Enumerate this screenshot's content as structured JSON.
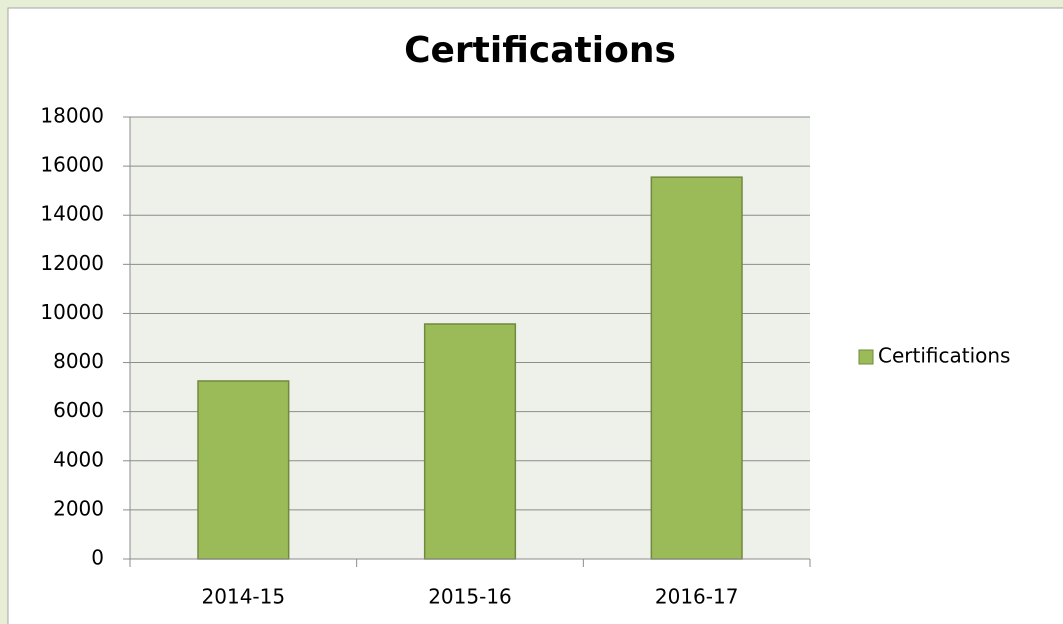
{
  "chart_data": {
    "type": "bar",
    "title": "Certifications",
    "categories": [
      "2014-15",
      "2015-16",
      "2016-17"
    ],
    "series": [
      {
        "name": "Certifications",
        "color": "#9bbb59",
        "values": [
          7250,
          9570,
          15550
        ]
      }
    ],
    "ylim": [
      0,
      18000
    ],
    "yticks": [
      0,
      2000,
      4000,
      6000,
      8000,
      10000,
      12000,
      14000,
      16000,
      18000
    ],
    "grid": true,
    "legend": "right"
  }
}
